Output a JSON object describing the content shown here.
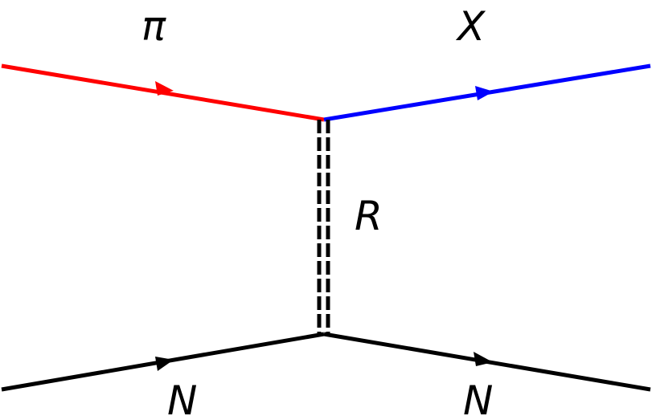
{
  "labels": {
    "pi": "π",
    "x": "X",
    "r": "R",
    "n_in": "N",
    "n_out": "N"
  },
  "colors": {
    "pi_line": "#ff0000",
    "x_line": "#0000ff",
    "nucleon_line": "#000000",
    "exchange_line": "#000000",
    "background": "#ffffff"
  }
}
